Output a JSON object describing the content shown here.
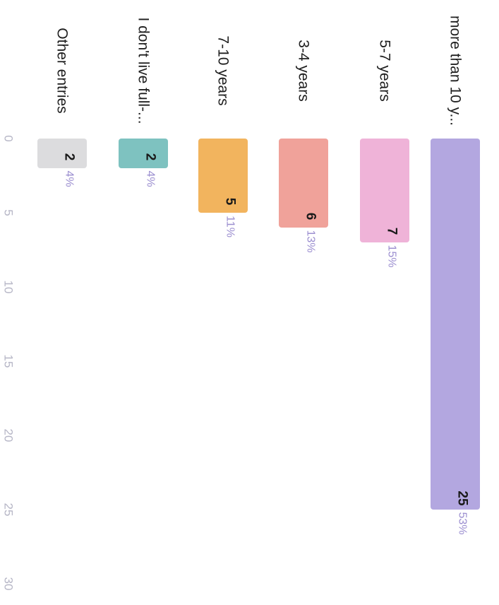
{
  "chart_data": {
    "type": "bar",
    "orientation": "horizontal",
    "categories": [
      "more than 10 y...",
      "5-7 years",
      "3-4 years",
      "7-10 years",
      "I don't live full-...",
      "Other entries"
    ],
    "values": [
      25,
      7,
      6,
      5,
      2,
      2
    ],
    "percent_labels": [
      "53%",
      "15%",
      "13%",
      "11%",
      "4%",
      "4%"
    ],
    "colors": [
      "#b3a7e0",
      "#efb3d8",
      "#f0a29a",
      "#f2b45e",
      "#7ec2c0",
      "#dcdcde"
    ],
    "xlim": [
      0,
      30
    ],
    "x_ticks": [
      "0",
      "5",
      "10",
      "15",
      "20",
      "25",
      "30"
    ],
    "title": "",
    "xlabel": "",
    "ylabel": "",
    "grid": false,
    "legend": "none"
  }
}
